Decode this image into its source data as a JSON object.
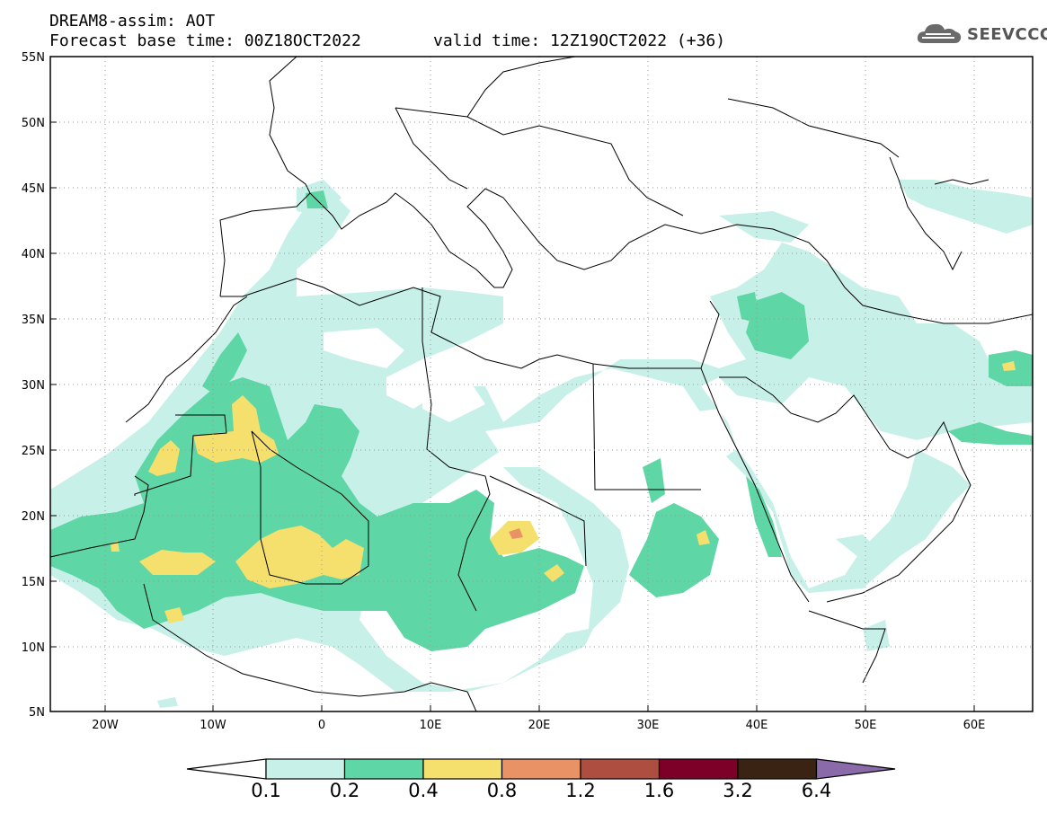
{
  "header": {
    "title_line1": "DREAM8-assim: AOT",
    "base_time": "Forecast base time: 00Z18OCT2022",
    "valid_time": "valid time: 12Z19OCT2022 (+36)"
  },
  "logo": {
    "text": "SEEVCCC",
    "icon": "cloud-icon"
  },
  "axes": {
    "lon_ticks": [
      "20W",
      "10W",
      "0",
      "10E",
      "20E",
      "30E",
      "40E",
      "50E",
      "60E"
    ],
    "lat_ticks": [
      "55N",
      "50N",
      "45N",
      "40N",
      "35N",
      "30N",
      "25N",
      "20N",
      "15N",
      "10N",
      "5N"
    ]
  },
  "colorbar": {
    "levels": [
      "0.1",
      "0.2",
      "0.4",
      "0.8",
      "1.2",
      "1.6",
      "3.2",
      "6.4"
    ],
    "colors": [
      "#ffffff",
      "#c6f0e8",
      "#5ed6a6",
      "#f5e06e",
      "#e99266",
      "#ad4e40",
      "#7c0028",
      "#3a2313",
      "#8a6aa8"
    ]
  }
}
